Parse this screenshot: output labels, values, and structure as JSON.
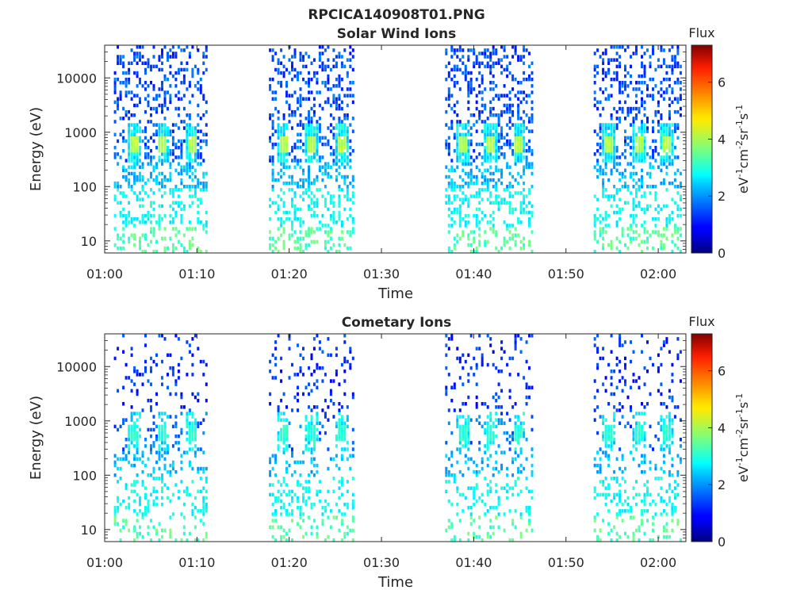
{
  "figure": {
    "title": "RPCICA140908T01.PNG"
  },
  "chart_data": [
    {
      "type": "heatmap",
      "title": "Solar Wind Ions",
      "xlabel": "Time",
      "ylabel": "Energy (eV)",
      "x_ticks": [
        "01:00",
        "01:10",
        "01:20",
        "01:30",
        "01:40",
        "01:50",
        "02:00"
      ],
      "y_ticks": [
        "10",
        "100",
        "1000",
        "10000"
      ],
      "y_scale": "log",
      "xlim_minutes": [
        0,
        63
      ],
      "ylim": [
        6,
        40000
      ],
      "colorbar": {
        "title": "Flux",
        "label_parts": [
          "eV",
          "-1",
          "cm",
          "-2",
          "sr",
          "-1",
          "s",
          "-1"
        ],
        "ticks": [
          "0",
          "2",
          "4",
          "6"
        ],
        "range": [
          0,
          7.3
        ],
        "colormap": "jet"
      },
      "data_gaps": "no data 01:11–01:17, 01:27–01:37, 01:46–01:52",
      "bursts": [
        {
          "start_min": 1.0,
          "end_min": 11.0,
          "peaks_min": [
            3.0,
            6.2,
            9.3
          ]
        },
        {
          "start_min": 17.8,
          "end_min": 27.0,
          "peaks_min": [
            19.2,
            22.4,
            25.7
          ]
        },
        {
          "start_min": 36.9,
          "end_min": 46.2,
          "peaks_min": [
            38.6,
            41.7,
            44.8
          ]
        },
        {
          "start_min": 53.0,
          "end_min": 62.5,
          "peaks_min": [
            54.5,
            57.8,
            60.8
          ]
        }
      ],
      "peak_energy_ev": 600,
      "peak_flux": 4.2,
      "background_flux": 1.0
    },
    {
      "type": "heatmap",
      "title": "Cometary Ions",
      "xlabel": "Time",
      "ylabel": "Energy (eV)",
      "x_ticks": [
        "01:00",
        "01:10",
        "01:20",
        "01:30",
        "01:40",
        "01:50",
        "02:00"
      ],
      "y_ticks": [
        "10",
        "100",
        "1000",
        "10000"
      ],
      "y_scale": "log",
      "xlim_minutes": [
        0,
        63
      ],
      "ylim": [
        6,
        40000
      ],
      "colorbar": {
        "title": "Flux",
        "label_parts": [
          "eV",
          "-1",
          "cm",
          "-2",
          "sr",
          "-1",
          "s",
          "-1"
        ],
        "ticks": [
          "0",
          "2",
          "4",
          "6"
        ],
        "range": [
          0,
          7.3
        ],
        "colormap": "jet"
      },
      "data_gaps": "no data 01:11–01:17, 01:27–01:37, 01:46–01:52",
      "bursts": [
        {
          "start_min": 1.0,
          "end_min": 11.0,
          "peaks_min": [
            3.0,
            6.2,
            9.3
          ]
        },
        {
          "start_min": 17.8,
          "end_min": 27.0,
          "peaks_min": [
            19.2,
            22.4,
            25.7
          ]
        },
        {
          "start_min": 36.9,
          "end_min": 46.2,
          "peaks_min": [
            38.6,
            41.7,
            44.8
          ]
        },
        {
          "start_min": 53.0,
          "end_min": 62.5,
          "peaks_min": [
            54.5,
            57.8,
            60.8
          ]
        }
      ],
      "peak_energy_ev": 600,
      "peak_flux": 3.2,
      "background_flux": 0.8
    }
  ]
}
